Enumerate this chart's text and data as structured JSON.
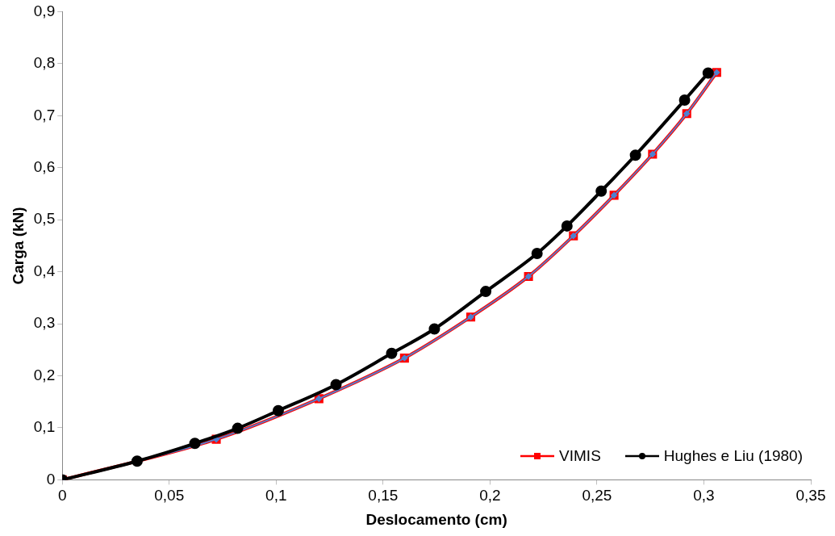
{
  "chart_data": {
    "type": "line",
    "xlabel": "Deslocamento (cm)",
    "ylabel": "Carga (kN)",
    "xlim": [
      0,
      0.35
    ],
    "ylim": [
      0,
      0.9
    ],
    "xticks": [
      0,
      {
        "value": 0.05,
        "label": "0,05"
      },
      {
        "value": 0.1,
        "label": "0,1"
      },
      {
        "value": 0.15,
        "label": "0,15"
      },
      {
        "value": 0.2,
        "label": "0,2"
      },
      {
        "value": 0.25,
        "label": "0,25"
      },
      {
        "value": 0.3,
        "label": "0,3"
      },
      {
        "value": 0.35,
        "label": "0,35"
      }
    ],
    "yticks": [
      0,
      {
        "value": 0.1,
        "label": "0,1"
      },
      {
        "value": 0.2,
        "label": "0,2"
      },
      {
        "value": 0.3,
        "label": "0,3"
      },
      {
        "value": 0.4,
        "label": "0,4"
      },
      {
        "value": 0.5,
        "label": "0,5"
      },
      {
        "value": 0.6,
        "label": "0,6"
      },
      {
        "value": 0.7,
        "label": "0,7"
      },
      {
        "value": 0.8,
        "label": "0,8"
      },
      {
        "value": 0.9,
        "label": "0,9"
      }
    ],
    "grid": false,
    "legend": "bottom right",
    "series": [
      {
        "name": "VIMIS",
        "color": "#ff0000",
        "marker": "square",
        "x": [
          0,
          0.072,
          0.12,
          0.16,
          0.191,
          0.218,
          0.239,
          0.258,
          0.276,
          0.292,
          0.306
        ],
        "values": [
          0,
          0.078,
          0.156,
          0.234,
          0.313,
          0.391,
          0.469,
          0.547,
          0.626,
          0.704,
          0.783
        ]
      },
      {
        "color": "#4f81d0",
        "marker": "diamond",
        "x": [
          0,
          0.072,
          0.12,
          0.16,
          0.191,
          0.218,
          0.239,
          0.258,
          0.276,
          0.292,
          0.306
        ],
        "values": [
          0,
          0.078,
          0.156,
          0.234,
          0.313,
          0.391,
          0.469,
          0.547,
          0.626,
          0.704,
          0.783
        ]
      },
      {
        "name": "Hughes e Liu (1980)",
        "color": "#000000",
        "marker": "circle",
        "x": [
          0,
          0.035,
          0.062,
          0.082,
          0.101,
          0.128,
          0.154,
          0.174,
          0.198,
          0.222,
          0.236,
          0.252,
          0.268,
          0.291,
          0.302
        ],
        "values": [
          0,
          0.036,
          0.07,
          0.099,
          0.133,
          0.183,
          0.243,
          0.29,
          0.362,
          0.435,
          0.488,
          0.555,
          0.624,
          0.73,
          0.782
        ]
      }
    ]
  }
}
